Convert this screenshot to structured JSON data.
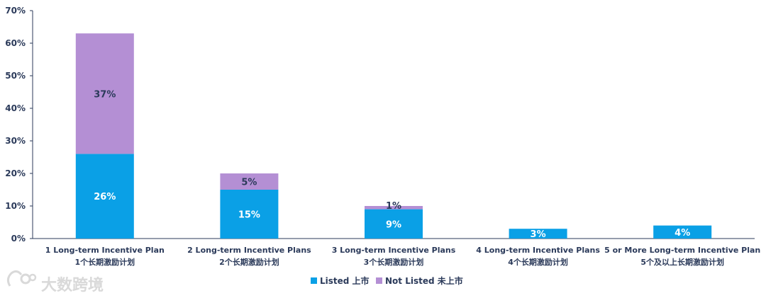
{
  "chart_data": {
    "type": "bar",
    "stacked": true,
    "categories": [
      [
        "1 Long-term Incentive Plan",
        "1个长期激励计划"
      ],
      [
        "2 Long-term Incentive Plans",
        "2个长期激励计划"
      ],
      [
        "3 Long-term Incentive Plans",
        "3个长期激励计划"
      ],
      [
        "4 Long-term Incentive Plans",
        "4个长期激励计划"
      ],
      [
        "5 or More Long-term Incentive Plan",
        "5个及以上长期激励计划"
      ]
    ],
    "series": [
      {
        "name": "Listed 上市",
        "color": "#0aa0e6",
        "values": [
          26,
          15,
          9,
          3,
          4
        ],
        "labels": [
          "26%",
          "15%",
          "9%",
          "3%",
          "4%"
        ],
        "label_color": "#ffffff"
      },
      {
        "name": "Not Listed 未上市",
        "color": "#b48fd4",
        "values": [
          37,
          5,
          1,
          0,
          0
        ],
        "labels": [
          "37%",
          "5%",
          "1%",
          "",
          ""
        ],
        "label_color": "#2b3a5a"
      }
    ],
    "ylim": [
      0,
      70
    ],
    "yticks": [
      0,
      10,
      20,
      30,
      40,
      50,
      60,
      70
    ],
    "ytick_labels": [
      "0%",
      "10%",
      "20%",
      "30%",
      "40%",
      "50%",
      "60%",
      "70%"
    ],
    "legend_position": "bottom-center",
    "grid": false
  },
  "watermark": {
    "text": "大数跨境",
    "icon": "logo-icon"
  }
}
